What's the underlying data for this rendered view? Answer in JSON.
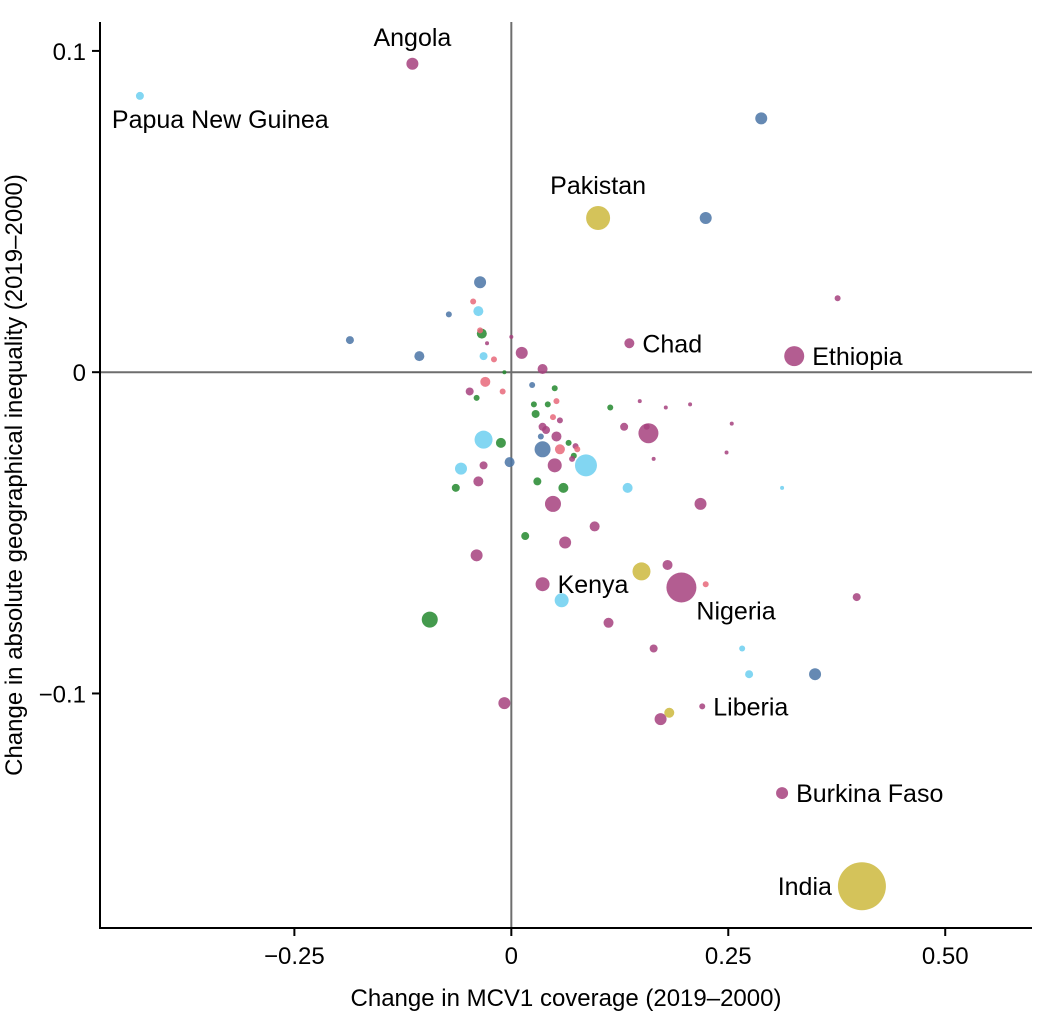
{
  "chart_data": {
    "type": "scatter",
    "xlabel": "Change in MCV1 coverage (2019–2000)",
    "ylabel": "Change in absolute geographical inequality (2019–2000)",
    "xlim": [
      -0.237,
      0.3
    ],
    "ylim": [
      -0.173,
      0.109
    ],
    "x_ticks": [
      {
        "value": -0.25,
        "label": "−0.25"
      },
      {
        "value": 0,
        "label": "0"
      },
      {
        "value": 0.25,
        "label": "0.25"
      },
      {
        "value": 0.5,
        "label": "0.50"
      }
    ],
    "y_ticks": [
      {
        "value": 0.1,
        "label": "0.1"
      },
      {
        "value": 0,
        "label": "0"
      },
      {
        "value": -0.1,
        "label": "−0.1"
      }
    ],
    "x_scale_factor": 2,
    "reference_lines": {
      "x": 0,
      "y": 0
    },
    "grid": false,
    "legend": "none",
    "colors": {
      "purple": "#a6417e",
      "blue": "#4a74a6",
      "lightblue": "#6ccff0",
      "green": "#23882e",
      "pink": "#e8687a",
      "yellow": "#cdb93d"
    },
    "points": [
      {
        "x": -0.057,
        "y": 0.096,
        "r": 6,
        "color": "purple",
        "label": "Angola",
        "label_pos": "above"
      },
      {
        "x": -0.214,
        "y": 0.086,
        "r": 4,
        "color": "lightblue",
        "label": "Papua New Guinea",
        "label_pos": "below"
      },
      {
        "x": 0.05,
        "y": 0.048,
        "r": 12,
        "color": "yellow",
        "label": "Pakistan",
        "label_pos": "above"
      },
      {
        "x": 0.144,
        "y": 0.079,
        "r": 6,
        "color": "blue"
      },
      {
        "x": 0.112,
        "y": 0.048,
        "r": 6,
        "color": "blue"
      },
      {
        "x": 0.188,
        "y": 0.023,
        "r": 3,
        "color": "purple"
      },
      {
        "x": 0.068,
        "y": 0.009,
        "r": 5,
        "color": "purple",
        "label": "Chad",
        "label_pos": "right"
      },
      {
        "x": 0.163,
        "y": 0.005,
        "r": 10,
        "color": "purple",
        "label": "Ethiopia",
        "label_pos": "right"
      },
      {
        "x": -0.018,
        "y": 0.028,
        "r": 6,
        "color": "blue"
      },
      {
        "x": -0.093,
        "y": 0.01,
        "r": 4,
        "color": "blue"
      },
      {
        "x": -0.053,
        "y": 0.005,
        "r": 5,
        "color": "blue"
      },
      {
        "x": -0.036,
        "y": 0.018,
        "r": 3,
        "color": "blue"
      },
      {
        "x": -0.022,
        "y": 0.022,
        "r": 3,
        "color": "pink"
      },
      {
        "x": -0.019,
        "y": 0.019,
        "r": 5,
        "color": "lightblue"
      },
      {
        "x": -0.018,
        "y": 0.013,
        "r": 3,
        "color": "pink"
      },
      {
        "x": -0.017,
        "y": 0.012,
        "r": 5,
        "color": "green"
      },
      {
        "x": -0.016,
        "y": 0.005,
        "r": 4,
        "color": "lightblue"
      },
      {
        "x": -0.01,
        "y": 0.004,
        "r": 3,
        "color": "pink"
      },
      {
        "x": -0.014,
        "y": 0.009,
        "r": 2,
        "color": "purple"
      },
      {
        "x": 0.006,
        "y": 0.006,
        "r": 6,
        "color": "purple"
      },
      {
        "x": 0.018,
        "y": 0.001,
        "r": 5,
        "color": "purple"
      },
      {
        "x": 0.0,
        "y": 0.011,
        "r": 2,
        "color": "purple"
      },
      {
        "x": -0.015,
        "y": -0.003,
        "r": 5,
        "color": "pink"
      },
      {
        "x": -0.02,
        "y": -0.008,
        "r": 3,
        "color": "green"
      },
      {
        "x": -0.024,
        "y": -0.006,
        "r": 4,
        "color": "purple"
      },
      {
        "x": -0.005,
        "y": -0.006,
        "r": 3,
        "color": "pink"
      },
      {
        "x": -0.004,
        "y": 0.0,
        "r": 2,
        "color": "green"
      },
      {
        "x": -0.016,
        "y": -0.021,
        "r": 9,
        "color": "lightblue"
      },
      {
        "x": -0.006,
        "y": -0.022,
        "r": 5,
        "color": "green"
      },
      {
        "x": -0.001,
        "y": -0.028,
        "r": 5,
        "color": "blue"
      },
      {
        "x": -0.029,
        "y": -0.03,
        "r": 6,
        "color": "lightblue"
      },
      {
        "x": -0.016,
        "y": -0.029,
        "r": 4,
        "color": "purple"
      },
      {
        "x": -0.019,
        "y": -0.034,
        "r": 5,
        "color": "purple"
      },
      {
        "x": -0.032,
        "y": -0.036,
        "r": 4,
        "color": "green"
      },
      {
        "x": 0.012,
        "y": -0.004,
        "r": 3,
        "color": "blue"
      },
      {
        "x": 0.025,
        "y": -0.005,
        "r": 3,
        "color": "green"
      },
      {
        "x": 0.013,
        "y": -0.01,
        "r": 3,
        "color": "green"
      },
      {
        "x": 0.018,
        "y": -0.017,
        "r": 4,
        "color": "purple"
      },
      {
        "x": 0.018,
        "y": -0.024,
        "r": 8,
        "color": "blue"
      },
      {
        "x": 0.043,
        "y": -0.029,
        "r": 11,
        "color": "lightblue"
      },
      {
        "x": 0.025,
        "y": -0.029,
        "r": 7,
        "color": "purple"
      },
      {
        "x": 0.028,
        "y": -0.024,
        "r": 5,
        "color": "pink"
      },
      {
        "x": 0.037,
        "y": -0.023,
        "r": 3,
        "color": "purple"
      },
      {
        "x": 0.03,
        "y": -0.036,
        "r": 5,
        "color": "green"
      },
      {
        "x": 0.024,
        "y": -0.041,
        "r": 8,
        "color": "purple"
      },
      {
        "x": 0.031,
        "y": -0.053,
        "r": 6,
        "color": "purple"
      },
      {
        "x": 0.048,
        "y": -0.048,
        "r": 5,
        "color": "purple"
      },
      {
        "x": 0.067,
        "y": -0.036,
        "r": 5,
        "color": "lightblue"
      },
      {
        "x": 0.065,
        "y": -0.017,
        "r": 4,
        "color": "purple"
      },
      {
        "x": 0.079,
        "y": -0.019,
        "r": 10,
        "color": "purple"
      },
      {
        "x": 0.078,
        "y": -0.017,
        "r": 3,
        "color": "purple"
      },
      {
        "x": 0.109,
        "y": -0.041,
        "r": 6,
        "color": "purple"
      },
      {
        "x": 0.008,
        "y": -0.051,
        "r": 4,
        "color": "green"
      },
      {
        "x": -0.02,
        "y": -0.057,
        "r": 6,
        "color": "purple"
      },
      {
        "x": 0.018,
        "y": -0.066,
        "r": 7,
        "color": "purple",
        "label": "Kenya",
        "label_pos": "right"
      },
      {
        "x": 0.029,
        "y": -0.071,
        "r": 7,
        "color": "lightblue"
      },
      {
        "x": 0.075,
        "y": -0.062,
        "r": 9,
        "color": "yellow"
      },
      {
        "x": 0.098,
        "y": -0.067,
        "r": 15,
        "color": "purple",
        "label": "Nigeria",
        "label_pos": "below-right"
      },
      {
        "x": 0.09,
        "y": -0.06,
        "r": 5,
        "color": "purple"
      },
      {
        "x": 0.056,
        "y": -0.078,
        "r": 5,
        "color": "purple"
      },
      {
        "x": -0.047,
        "y": -0.077,
        "r": 8,
        "color": "green"
      },
      {
        "x": 0.082,
        "y": -0.086,
        "r": 4,
        "color": "purple"
      },
      {
        "x": 0.133,
        "y": -0.086,
        "r": 3,
        "color": "lightblue"
      },
      {
        "x": 0.137,
        "y": -0.094,
        "r": 4,
        "color": "lightblue"
      },
      {
        "x": 0.175,
        "y": -0.094,
        "r": 6,
        "color": "blue"
      },
      {
        "x": 0.199,
        "y": -0.07,
        "r": 4,
        "color": "purple"
      },
      {
        "x": -0.004,
        "y": -0.103,
        "r": 6,
        "color": "purple"
      },
      {
        "x": 0.086,
        "y": -0.108,
        "r": 6,
        "color": "purple"
      },
      {
        "x": 0.091,
        "y": -0.106,
        "r": 5,
        "color": "yellow"
      },
      {
        "x": 0.11,
        "y": -0.104,
        "r": 3,
        "color": "purple",
        "label": "Liberia",
        "label_pos": "right"
      },
      {
        "x": 0.156,
        "y": -0.131,
        "r": 6,
        "color": "purple",
        "label": "Burkina Faso",
        "label_pos": "right"
      },
      {
        "x": 0.202,
        "y": -0.16,
        "r": 24,
        "color": "yellow",
        "label": "India",
        "label_pos": "left"
      },
      {
        "x": 0.156,
        "y": -0.036,
        "r": 2,
        "color": "lightblue"
      },
      {
        "x": 0.124,
        "y": -0.025,
        "r": 2,
        "color": "purple"
      },
      {
        "x": 0.127,
        "y": -0.016,
        "r": 2,
        "color": "purple"
      },
      {
        "x": 0.089,
        "y": -0.011,
        "r": 2,
        "color": "purple"
      },
      {
        "x": 0.103,
        "y": -0.01,
        "r": 2,
        "color": "purple"
      },
      {
        "x": 0.082,
        "y": -0.027,
        "r": 2,
        "color": "purple"
      },
      {
        "x": 0.112,
        "y": -0.066,
        "r": 3,
        "color": "pink"
      },
      {
        "x": 0.074,
        "y": -0.009,
        "r": 2,
        "color": "purple"
      },
      {
        "x": 0.057,
        "y": -0.011,
        "r": 3,
        "color": "green"
      },
      {
        "x": 0.021,
        "y": -0.01,
        "r": 3,
        "color": "green"
      },
      {
        "x": 0.014,
        "y": -0.013,
        "r": 4,
        "color": "green"
      },
      {
        "x": 0.026,
        "y": -0.009,
        "r": 3,
        "color": "pink"
      },
      {
        "x": 0.028,
        "y": -0.015,
        "r": 3,
        "color": "purple"
      },
      {
        "x": 0.036,
        "y": -0.026,
        "r": 3,
        "color": "green"
      },
      {
        "x": 0.015,
        "y": -0.034,
        "r": 4,
        "color": "green"
      },
      {
        "x": 0.035,
        "y": -0.027,
        "r": 3,
        "color": "purple"
      },
      {
        "x": 0.024,
        "y": -0.014,
        "r": 3,
        "color": "pink"
      },
      {
        "x": 0.026,
        "y": -0.02,
        "r": 5,
        "color": "purple"
      },
      {
        "x": 0.038,
        "y": -0.024,
        "r": 3,
        "color": "pink"
      },
      {
        "x": 0.033,
        "y": -0.022,
        "r": 3,
        "color": "green"
      },
      {
        "x": 0.017,
        "y": -0.02,
        "r": 3,
        "color": "blue"
      },
      {
        "x": 0.02,
        "y": -0.018,
        "r": 4,
        "color": "purple"
      }
    ]
  }
}
